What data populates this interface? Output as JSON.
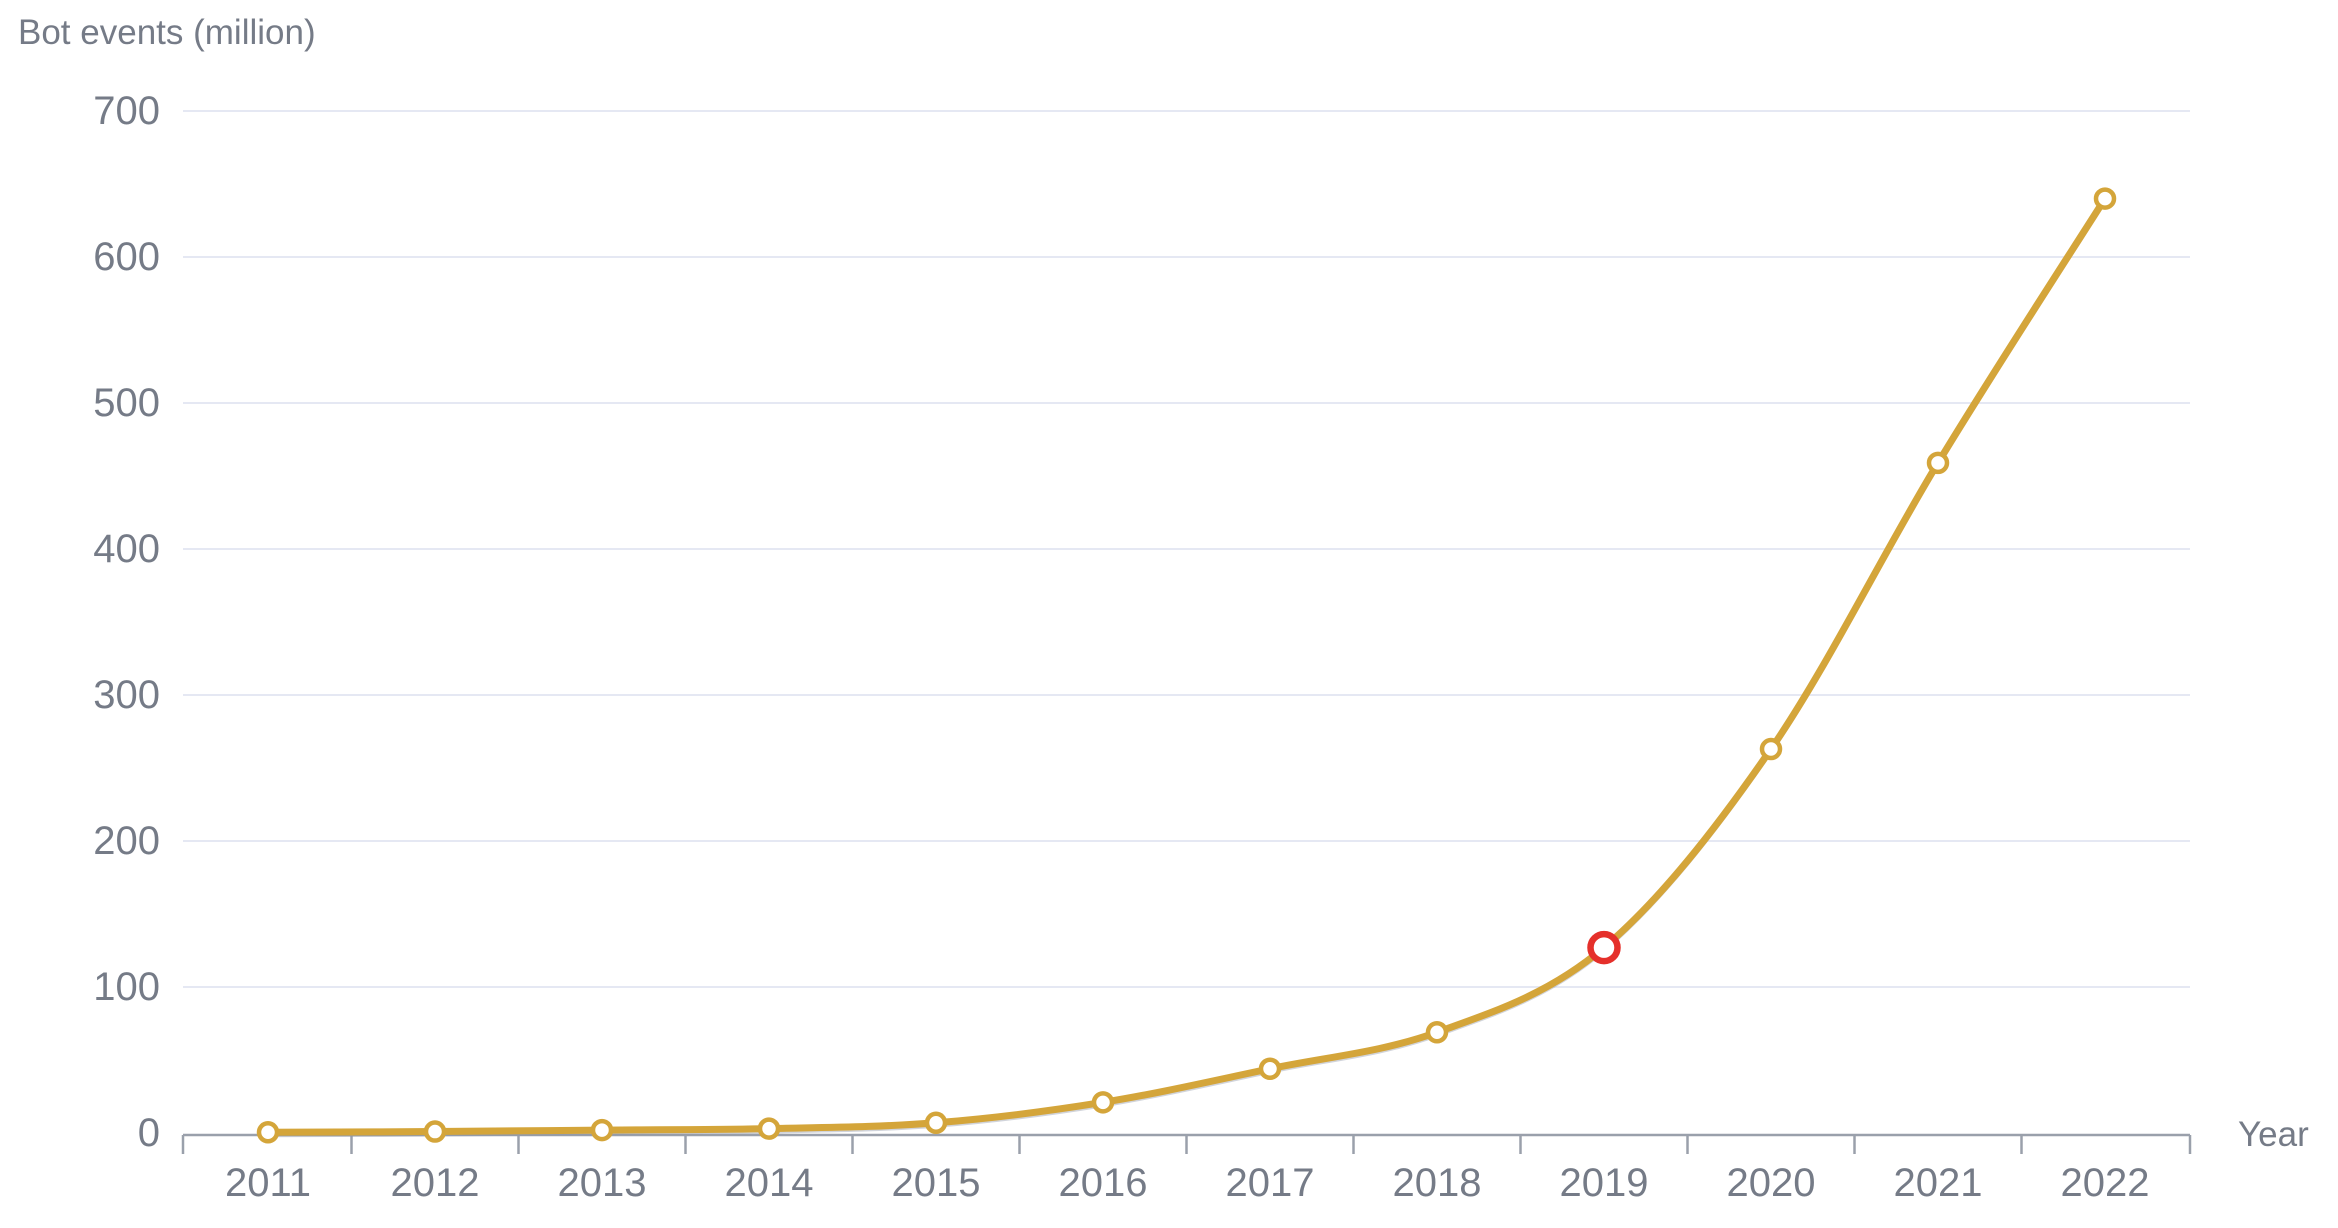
{
  "page": {
    "background": "#ffffff"
  },
  "chart_data": {
    "type": "line",
    "title": "",
    "ylabel": "Bot events (million)",
    "xlabel": "Year",
    "categories": [
      "2011",
      "2012",
      "2013",
      "2014",
      "2015",
      "2016",
      "2017",
      "2018",
      "2019",
      "2020",
      "2021",
      "2022"
    ],
    "series": [
      {
        "name": "Bot events",
        "color": "#D4A53A",
        "marker": "open-circle",
        "values": [
          0.5,
          1,
          2,
          3,
          7,
          21,
          44,
          69,
          127,
          263,
          459,
          640
        ]
      }
    ],
    "highlight_point": {
      "category": "2019",
      "value": 127,
      "ring_color": "#E5302B"
    },
    "yticks": [
      0,
      100,
      200,
      300,
      400,
      500,
      600,
      700
    ],
    "ylim": [
      0,
      700
    ],
    "grid": "horizontal",
    "legend": "none",
    "colors": {
      "gridline": "#E5E8F3",
      "axis": "#9AA0AB",
      "tick_label": "#757B87",
      "marker_fill": "#FFFFFF",
      "line_shadow": "#8B93A6"
    }
  }
}
